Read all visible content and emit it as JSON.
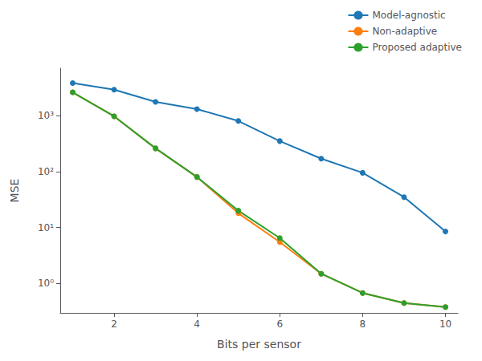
{
  "chart_data": {
    "type": "line",
    "x": [
      1,
      2,
      3,
      4,
      5,
      6,
      7,
      8,
      9,
      10
    ],
    "series": [
      {
        "name": "Model-agnostic",
        "color": "#1f77b4",
        "values": [
          3800,
          2900,
          1750,
          1300,
          800,
          350,
          170,
          95,
          35,
          8.5
        ]
      },
      {
        "name": "Non-adaptive",
        "color": "#ff7f0e",
        "values": [
          2600,
          970,
          260,
          80,
          18,
          5.5,
          1.5,
          0.68,
          0.45,
          0.38
        ]
      },
      {
        "name": "Proposed adaptive",
        "color": "#2ca02c",
        "values": [
          2600,
          970,
          260,
          80,
          20,
          6.5,
          1.5,
          0.68,
          0.45,
          0.38
        ]
      }
    ],
    "x_label": "Bits per sensor",
    "y_label": "MSE",
    "xlim": [
      0.7,
      10.3
    ],
    "xticks": [
      2,
      4,
      6,
      8,
      10
    ],
    "ylim": [
      0.3,
      7000
    ],
    "yticks": [
      {
        "value": 1,
        "label": "10⁰"
      },
      {
        "value": 10,
        "label": "10¹"
      },
      {
        "value": 100,
        "label": "10²"
      },
      {
        "value": 1000,
        "label": "10³"
      }
    ],
    "log": "y",
    "marker": "circle",
    "legend": "upper right",
    "grid": false
  }
}
